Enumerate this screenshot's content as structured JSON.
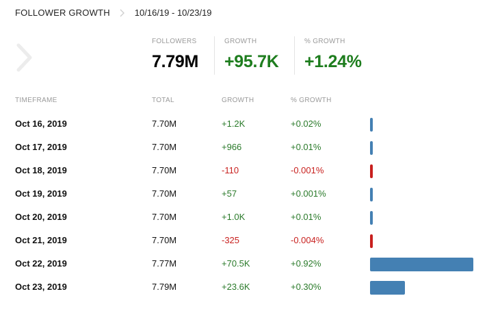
{
  "header": {
    "title": "FOLLOWER GROWTH",
    "date_range": "10/16/19 - 10/23/19"
  },
  "summary": {
    "followers_label": "FOLLOWERS",
    "followers_value": "7.79M",
    "growth_label": "GROWTH",
    "growth_value": "+95.7K",
    "pct_growth_label": "% GROWTH",
    "pct_growth_value": "+1.24%"
  },
  "table": {
    "columns": [
      "TIMEFRAME",
      "TOTAL",
      "GROWTH",
      "% GROWTH"
    ],
    "rows": [
      {
        "date": "Oct 16, 2019",
        "total": "7.70M",
        "growth": "+1.2K",
        "pct": "+0.02%",
        "growth_num": 1200
      },
      {
        "date": "Oct 17, 2019",
        "total": "7.70M",
        "growth": "+966",
        "pct": "+0.01%",
        "growth_num": 966
      },
      {
        "date": "Oct 18, 2019",
        "total": "7.70M",
        "growth": "-110",
        "pct": "-0.001%",
        "growth_num": -110
      },
      {
        "date": "Oct 19, 2019",
        "total": "7.70M",
        "growth": "+57",
        "pct": "+0.001%",
        "growth_num": 57
      },
      {
        "date": "Oct 20, 2019",
        "total": "7.70M",
        "growth": "+1.0K",
        "pct": "+0.01%",
        "growth_num": 1000
      },
      {
        "date": "Oct 21, 2019",
        "total": "7.70M",
        "growth": "-325",
        "pct": "-0.004%",
        "growth_num": -325
      },
      {
        "date": "Oct 22, 2019",
        "total": "7.77M",
        "growth": "+70.5K",
        "pct": "+0.92%",
        "growth_num": 70500
      },
      {
        "date": "Oct 23, 2019",
        "total": "7.79M",
        "growth": "+23.6K",
        "pct": "+0.30%",
        "growth_num": 23600
      }
    ]
  },
  "colors": {
    "positive_text": "#2a7a2a",
    "negative_text": "#c8201e",
    "positive_bar": "#4480b3",
    "negative_bar": "#c8201e",
    "accent_value": "#1e7d1e"
  },
  "icons": {
    "breadcrumb_separator": "chevron-right-icon",
    "nav_previous": "chevron-right-icon"
  }
}
